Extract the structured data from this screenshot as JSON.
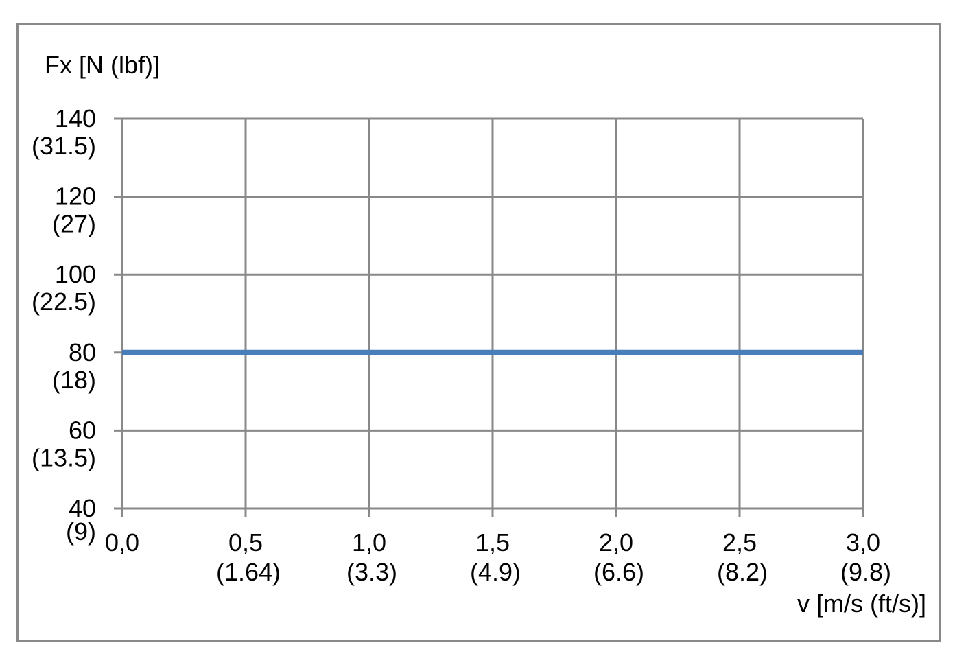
{
  "chart_data": {
    "type": "line",
    "title": "",
    "ylabel": "Fx [N (lbf)]",
    "xlabel": "v [m/s (ft/s)]",
    "xlim": [
      0,
      3.0
    ],
    "ylim": [
      40,
      140
    ],
    "grid": true,
    "x_ticks": [
      {
        "value": 0.0,
        "label": "0,0",
        "sublabel": ""
      },
      {
        "value": 0.5,
        "label": "0,5",
        "sublabel": "(1.64)"
      },
      {
        "value": 1.0,
        "label": "1,0",
        "sublabel": "(3.3)"
      },
      {
        "value": 1.5,
        "label": "1,5",
        "sublabel": "(4.9)"
      },
      {
        "value": 2.0,
        "label": "2,0",
        "sublabel": "(6.6)"
      },
      {
        "value": 2.5,
        "label": "2,5",
        "sublabel": "(8.2)"
      },
      {
        "value": 3.0,
        "label": "3,0",
        "sublabel": "(9.8)"
      }
    ],
    "y_ticks": [
      {
        "value": 140,
        "label": "140",
        "sublabel": "(31.5)"
      },
      {
        "value": 120,
        "label": "120",
        "sublabel": "(27)"
      },
      {
        "value": 100,
        "label": "100",
        "sublabel": "(22.5)"
      },
      {
        "value": 80,
        "label": "80",
        "sublabel": "(18)"
      },
      {
        "value": 60,
        "label": "60",
        "sublabel": "(13.5)"
      },
      {
        "value": 40,
        "label": "40",
        "sublabel": "(9)"
      }
    ],
    "series": [
      {
        "x": [
          0.0,
          3.0
        ],
        "y": [
          80,
          80
        ],
        "color": "#4a7ebb"
      }
    ],
    "colors": {
      "grid": "#898989",
      "frame": "#898989"
    }
  }
}
